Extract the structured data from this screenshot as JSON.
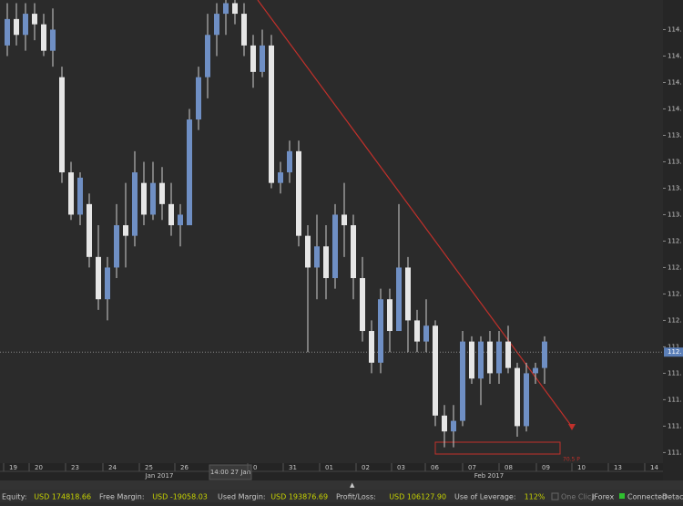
{
  "chart_data": {
    "type": "candlestick",
    "open": [
      114.6,
      114.85,
      114.7,
      114.9,
      114.8,
      114.55,
      114.3,
      113.4,
      113.0,
      113.1,
      112.6,
      112.2,
      112.5,
      112.9,
      112.8,
      113.3,
      113.0,
      113.3,
      113.1,
      112.9,
      112.9,
      113.9,
      114.3,
      114.7,
      114.9,
      115.0,
      114.9,
      114.6,
      114.35,
      114.6,
      113.3,
      113.4,
      113.6,
      112.8,
      112.5,
      112.7,
      112.4,
      113.0,
      112.9,
      112.4,
      111.9,
      111.6,
      112.2,
      111.9,
      112.5,
      112.0,
      111.8,
      111.95,
      111.1,
      110.95,
      111.05,
      111.8,
      111.45,
      111.8,
      111.5,
      111.8,
      111.55,
      111.0,
      111.5,
      111.55
    ],
    "high": [
      115.0,
      115.0,
      115.0,
      115.0,
      114.9,
      114.95,
      114.4,
      113.5,
      113.4,
      113.2,
      112.9,
      112.6,
      113.1,
      113.3,
      113.6,
      113.5,
      113.5,
      113.45,
      113.3,
      113.1,
      114.0,
      114.4,
      114.9,
      115.0,
      115.03,
      115.03,
      115.0,
      114.7,
      114.75,
      114.7,
      113.5,
      113.7,
      113.7,
      112.9,
      113.0,
      112.9,
      113.1,
      113.3,
      113.0,
      112.6,
      112.0,
      112.3,
      112.3,
      113.1,
      112.6,
      112.1,
      112.2,
      112.0,
      111.2,
      111.2,
      111.9,
      111.85,
      111.85,
      111.9,
      111.9,
      111.95,
      111.6,
      111.6,
      111.6,
      111.85
    ],
    "low": [
      114.5,
      114.6,
      114.55,
      114.65,
      114.5,
      114.4,
      113.3,
      112.95,
      112.9,
      112.5,
      112.1,
      112.0,
      112.4,
      112.5,
      112.7,
      112.9,
      112.95,
      112.95,
      112.8,
      112.7,
      112.9,
      113.8,
      114.1,
      114.5,
      114.7,
      114.8,
      114.5,
      114.2,
      114.3,
      113.25,
      113.2,
      113.3,
      112.7,
      111.7,
      112.2,
      112.2,
      112.3,
      112.6,
      112.2,
      111.8,
      111.5,
      111.5,
      111.7,
      111.9,
      111.7,
      111.7,
      111.7,
      111.0,
      110.8,
      110.8,
      111.0,
      111.4,
      111.2,
      111.4,
      111.4,
      111.5,
      110.9,
      110.95,
      111.4,
      111.4
    ],
    "close": [
      114.85,
      114.7,
      114.9,
      114.8,
      114.55,
      114.75,
      113.4,
      113.0,
      113.35,
      112.6,
      112.2,
      112.5,
      112.9,
      112.8,
      113.4,
      113.0,
      113.3,
      113.1,
      112.9,
      113.0,
      113.9,
      114.3,
      114.7,
      114.9,
      115.0,
      114.9,
      114.6,
      114.35,
      114.6,
      113.3,
      113.4,
      113.6,
      112.8,
      112.5,
      112.7,
      112.4,
      113.0,
      112.9,
      112.4,
      111.9,
      111.6,
      112.2,
      111.9,
      112.5,
      112.0,
      111.8,
      111.95,
      111.1,
      110.95,
      111.05,
      111.8,
      111.45,
      111.8,
      111.5,
      111.8,
      111.55,
      111.0,
      111.5,
      111.55,
      111.8
    ],
    "ylim": [
      110.65,
      115.03
    ],
    "yticks": [
      {
        "value": 114.75,
        "label": "114."
      },
      {
        "value": 114.5,
        "label": "114."
      },
      {
        "value": 114.25,
        "label": "114."
      },
      {
        "value": 114.0,
        "label": "114."
      },
      {
        "value": 113.75,
        "label": "113."
      },
      {
        "value": 113.5,
        "label": "113."
      },
      {
        "value": 113.25,
        "label": "113."
      },
      {
        "value": 113.0,
        "label": "113."
      },
      {
        "value": 112.75,
        "label": "112."
      },
      {
        "value": 112.5,
        "label": "112."
      },
      {
        "value": 112.25,
        "label": "112."
      },
      {
        "value": 112.0,
        "label": "112."
      },
      {
        "value": 111.75,
        "label": "111."
      },
      {
        "value": 111.5,
        "label": "111."
      },
      {
        "value": 111.25,
        "label": "111."
      },
      {
        "value": 111.0,
        "label": "111."
      },
      {
        "value": 110.75,
        "label": "111."
      }
    ],
    "current_price": {
      "value": 111.7,
      "label": "112."
    },
    "x_labels": [
      "19",
      "20",
      "23",
      "24",
      "25",
      "26",
      "0",
      "31",
      "01",
      "02",
      "03",
      "06",
      "07",
      "08",
      "09",
      "10",
      "13",
      "14"
    ],
    "month_labels": [
      "Jan 2017",
      "Feb 2017"
    ],
    "crosshair_label": "14:00 27 Jan",
    "annotation": "70.5 P"
  },
  "status_bar": {
    "items": [
      [
        "Equity:",
        "USD 174818.66"
      ],
      [
        "Free Margin:",
        "USD -19058.03"
      ],
      [
        "Used Margin:",
        "USD 193876.69"
      ],
      [
        "Profit/Loss:",
        "USD 106127.90"
      ],
      [
        "Use of Leverage:",
        "112%"
      ]
    ],
    "one_click": "One Click",
    "platform": "JForex",
    "connection": "Connected",
    "detach": "Detache"
  }
}
